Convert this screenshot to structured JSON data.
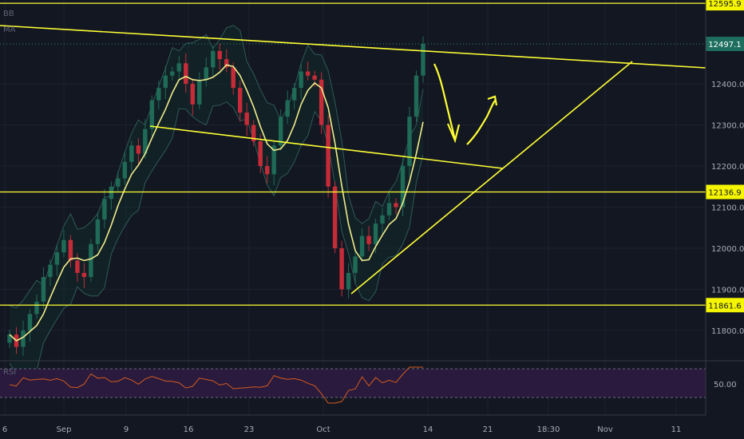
{
  "indicators": {
    "bb": "BB",
    "ma": "MA",
    "rsi": "RSI"
  },
  "colors": {
    "background": "#131722",
    "grid": "#1e2230",
    "yellow": "#ffff33",
    "candle_up": "#1f6b57",
    "candle_down": "#c62b38",
    "bb_band": "#2f5a57",
    "rsi_line": "#d45b1e",
    "rsi_zone": "#2a1a3d",
    "axis_text": "#a8acb7",
    "price_tag": "#f5f500",
    "current_tag": "#1d6e5f"
  },
  "chart_data": {
    "type": "candlestick",
    "x_ticks": [
      "6",
      "Sep",
      "9",
      "16",
      "23",
      "Oct",
      "14",
      "21",
      "18:30",
      "Nov",
      "11"
    ],
    "y_ticks": [
      "11800.0",
      "11900.0",
      "12000.0",
      "12100.0",
      "12200.0",
      "12300.0",
      "12400.0"
    ],
    "ylim": [
      11720,
      12640
    ],
    "horizontal_levels": [
      {
        "value": 12595.9,
        "label": "12595.9"
      },
      {
        "value": 12136.9,
        "label": "12136.9"
      },
      {
        "value": 11861.6,
        "label": "11861.6"
      }
    ],
    "current_price": {
      "value": 12497.1,
      "label": "12497.1"
    },
    "approx_closes": [
      11790,
      11760,
      11800,
      11840,
      11870,
      11930,
      11960,
      11990,
      12020,
      11970,
      11940,
      11930,
      12010,
      12070,
      12120,
      12150,
      12170,
      12210,
      12250,
      12230,
      12290,
      12360,
      12390,
      12420,
      12430,
      12450,
      12400,
      12350,
      12410,
      12440,
      12480,
      12460,
      12440,
      12390,
      12330,
      12300,
      12260,
      12200,
      12180,
      12250,
      12320,
      12360,
      12390,
      12430,
      12420,
      12410,
      12300,
      12150,
      12000,
      11900,
      11940,
      11980,
      12030,
      12010,
      12060,
      12080,
      12110,
      12100,
      12200,
      12320,
      12420,
      12497
    ],
    "rsi_reference": "50.00"
  }
}
